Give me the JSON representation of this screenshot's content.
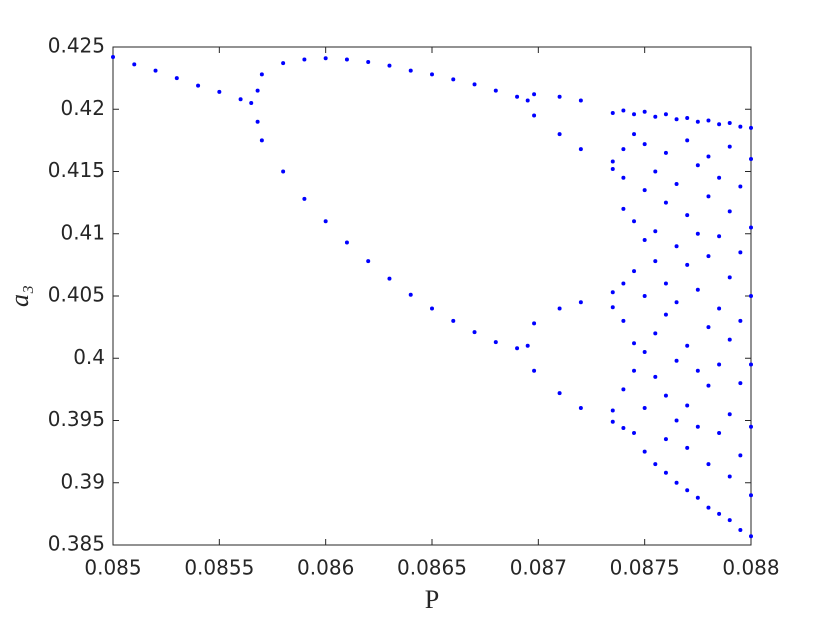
{
  "chart_data": {
    "type": "scatter",
    "x_label": "P",
    "y_label": "a₃",
    "color": "#0000ff",
    "xlim": [
      0.085,
      0.088
    ],
    "xticks": [
      0.085,
      0.0855,
      0.086,
      0.0865,
      0.087,
      0.0875,
      0.088
    ],
    "ylim": [
      0.385,
      0.425
    ],
    "yticks": [
      0.385,
      0.39,
      0.395,
      0.4,
      0.405,
      0.41,
      0.415,
      0.42,
      0.425
    ],
    "x": [
      0.085,
      0.0851,
      0.0852,
      0.0853,
      0.0854,
      0.0855,
      0.0856,
      0.08565,
      0.08568,
      0.0857,
      0.0858,
      0.0859,
      0.086,
      0.0861,
      0.0862,
      0.0863,
      0.0864,
      0.0865,
      0.0866,
      0.0867,
      0.0868,
      0.0869,
      0.08695,
      0.08568,
      0.0857,
      0.0858,
      0.0859,
      0.086,
      0.0861,
      0.0862,
      0.0863,
      0.0864,
      0.0865,
      0.0866,
      0.0867,
      0.0868,
      0.0869,
      0.08695,
      0.08698,
      0.0871,
      0.0872,
      0.08698,
      0.0871,
      0.0872,
      0.08698,
      0.0871,
      0.0872,
      0.08698,
      0.0871,
      0.0872,
      0.08735,
      0.08735,
      0.08735,
      0.08735,
      0.08735,
      0.08735,
      0.08735,
      0.0874,
      0.0874,
      0.0874,
      0.0874,
      0.0874,
      0.0874,
      0.0874,
      0.0874,
      0.08745,
      0.08745,
      0.08745,
      0.08745,
      0.08745,
      0.08745,
      0.08745,
      0.0875,
      0.0875,
      0.0875,
      0.0875,
      0.0875,
      0.0875,
      0.0875,
      0.0875,
      0.08755,
      0.08755,
      0.08755,
      0.08755,
      0.08755,
      0.08755,
      0.08755,
      0.0876,
      0.0876,
      0.0876,
      0.0876,
      0.0876,
      0.0876,
      0.0876,
      0.0876,
      0.08765,
      0.08765,
      0.08765,
      0.08765,
      0.08765,
      0.08765,
      0.08765,
      0.0877,
      0.0877,
      0.0877,
      0.0877,
      0.0877,
      0.0877,
      0.0877,
      0.0877,
      0.08775,
      0.08775,
      0.08775,
      0.08775,
      0.08775,
      0.08775,
      0.08775,
      0.0878,
      0.0878,
      0.0878,
      0.0878,
      0.0878,
      0.0878,
      0.0878,
      0.0878,
      0.08785,
      0.08785,
      0.08785,
      0.08785,
      0.08785,
      0.08785,
      0.08785,
      0.0879,
      0.0879,
      0.0879,
      0.0879,
      0.0879,
      0.0879,
      0.0879,
      0.0879,
      0.08795,
      0.08795,
      0.08795,
      0.08795,
      0.08795,
      0.08795,
      0.08795,
      0.088,
      0.088,
      0.088,
      0.088,
      0.088,
      0.088,
      0.088,
      0.088
    ],
    "values": [
      0.4242,
      0.4236,
      0.4231,
      0.4225,
      0.4219,
      0.4214,
      0.4208,
      0.4205,
      0.4215,
      0.4228,
      0.4237,
      0.424,
      0.4241,
      0.424,
      0.4238,
      0.4235,
      0.4231,
      0.4228,
      0.4224,
      0.422,
      0.4215,
      0.421,
      0.4207,
      0.419,
      0.4175,
      0.415,
      0.4128,
      0.411,
      0.4093,
      0.4078,
      0.4064,
      0.4051,
      0.404,
      0.403,
      0.4021,
      0.4013,
      0.4008,
      0.401,
      0.4212,
      0.421,
      0.4207,
      0.4195,
      0.418,
      0.4168,
      0.4028,
      0.404,
      0.4045,
      0.399,
      0.3972,
      0.396,
      0.4197,
      0.4158,
      0.4152,
      0.4053,
      0.4041,
      0.3958,
      0.3949,
      0.4199,
      0.4168,
      0.4145,
      0.412,
      0.406,
      0.403,
      0.3975,
      0.3944,
      0.4196,
      0.418,
      0.411,
      0.407,
      0.4012,
      0.399,
      0.394,
      0.4198,
      0.4172,
      0.4135,
      0.4095,
      0.405,
      0.4005,
      0.396,
      0.3925,
      0.4194,
      0.415,
      0.4102,
      0.4078,
      0.402,
      0.3985,
      0.3915,
      0.4196,
      0.4165,
      0.4125,
      0.406,
      0.4035,
      0.397,
      0.3935,
      0.3908,
      0.4192,
      0.414,
      0.409,
      0.4045,
      0.3998,
      0.395,
      0.39,
      0.4193,
      0.4175,
      0.4115,
      0.4075,
      0.401,
      0.3962,
      0.3928,
      0.3894,
      0.419,
      0.4155,
      0.41,
      0.4055,
      0.399,
      0.3945,
      0.3888,
      0.4191,
      0.4162,
      0.413,
      0.4082,
      0.4025,
      0.3978,
      0.3915,
      0.388,
      0.4188,
      0.4145,
      0.4098,
      0.404,
      0.3995,
      0.394,
      0.3875,
      0.4189,
      0.417,
      0.4118,
      0.4065,
      0.4015,
      0.3955,
      0.3905,
      0.387,
      0.4186,
      0.4138,
      0.4085,
      0.403,
      0.398,
      0.3922,
      0.3862,
      0.4185,
      0.416,
      0.4105,
      0.405,
      0.3995,
      0.3945,
      0.389,
      0.3857
    ]
  }
}
